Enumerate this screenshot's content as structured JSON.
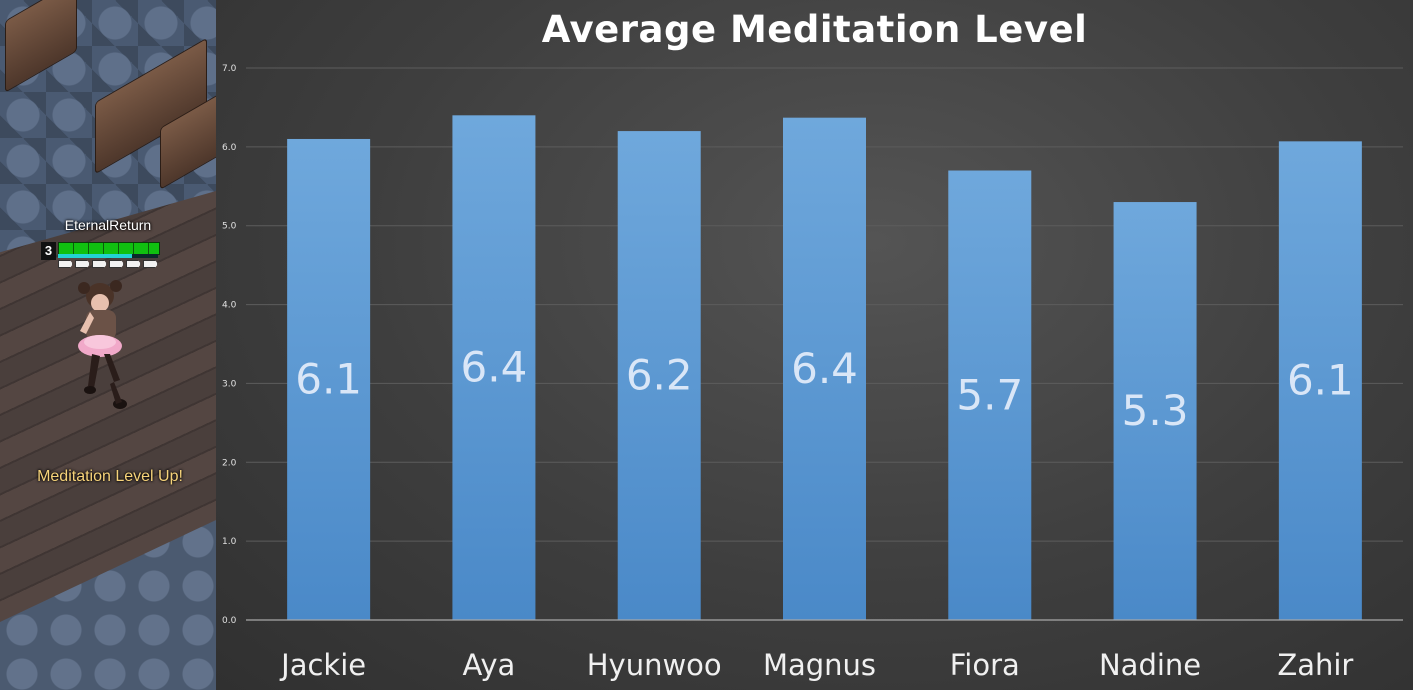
{
  "game": {
    "player_name": "EternalReturn",
    "level": "3",
    "hp_fraction": 1.0,
    "sp_fraction": 0.74,
    "notification": "Meditation Level Up!"
  },
  "chart_data": {
    "type": "bar",
    "title": "Average Meditation Level",
    "xlabel": "",
    "ylabel": "",
    "categories": [
      "Jackie",
      "Aya",
      "Hyunwoo",
      "Magnus",
      "Fiora",
      "Nadine",
      "Zahir"
    ],
    "values": [
      6.1,
      6.4,
      6.2,
      6.4,
      5.7,
      5.3,
      6.1
    ],
    "data_labels": [
      "6.1",
      "6.4",
      "6.2",
      "6.4",
      "5.7",
      "5.3",
      "6.1"
    ],
    "bar_values_precise": [
      6.1,
      6.4,
      6.2,
      6.37,
      5.7,
      5.3,
      6.07
    ],
    "ylim": [
      0,
      7
    ],
    "yticks": [
      "0.0",
      "1.0",
      "2.0",
      "3.0",
      "4.0",
      "5.0",
      "6.0",
      "7.0"
    ],
    "grid": true,
    "legend": "none",
    "bar_color": "#5b9bd5",
    "background_color": "#404040"
  }
}
